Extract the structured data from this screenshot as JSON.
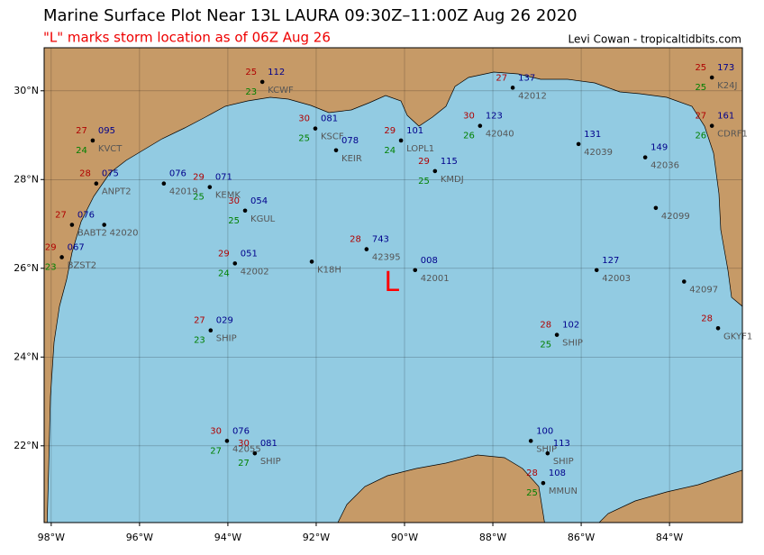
{
  "map": {
    "title": "Marine Surface Plot Near 13L LAURA 09:30Z–11:00Z Aug 26 2020",
    "subtitle": "\"L\" marks storm location as of 06Z Aug 26",
    "credit": "Levi Cowan - tropicaltidbits.com",
    "xlim": [
      -98.16,
      -82.35
    ],
    "ylim": [
      20.27,
      30.97
    ],
    "xticks": [
      {
        "value": -98,
        "label": "98°W"
      },
      {
        "value": -96,
        "label": "96°W"
      },
      {
        "value": -94,
        "label": "94°W"
      },
      {
        "value": -92,
        "label": "92°W"
      },
      {
        "value": -90,
        "label": "90°W"
      },
      {
        "value": -88,
        "label": "88°W"
      },
      {
        "value": -86,
        "label": "86°W"
      },
      {
        "value": -84,
        "label": "84°W"
      }
    ],
    "yticks": [
      {
        "value": 22,
        "label": "22°N"
      },
      {
        "value": 24,
        "label": "24°N"
      },
      {
        "value": 26,
        "label": "26°N"
      },
      {
        "value": 28,
        "label": "28°N"
      },
      {
        "value": 30,
        "label": "30°N"
      }
    ],
    "grid": true,
    "storm": {
      "label": "L",
      "lon": -90.29,
      "lat": 25.66
    },
    "stations": [
      {
        "id": "42019",
        "lon": -95.45,
        "lat": 27.91,
        "pressure": "076"
      },
      {
        "id": "KEMK",
        "lon": -94.41,
        "lat": 27.83,
        "temp": 29,
        "dewpoint": 25,
        "pressure": "071"
      },
      {
        "id": "KGUL",
        "lon": -93.61,
        "lat": 27.3,
        "temp": 30,
        "dewpoint": 25,
        "pressure": "054"
      },
      {
        "id": "42002",
        "lon": -93.84,
        "lat": 26.11,
        "temp": 29,
        "dewpoint": 24,
        "pressure": "051"
      },
      {
        "id": "SHIP",
        "lon": -94.39,
        "lat": 24.6,
        "temp": 27,
        "dewpoint": 23,
        "pressure": "029"
      },
      {
        "id": "42395",
        "lon": -90.86,
        "lat": 26.43,
        "temp": 28,
        "pressure": "743"
      },
      {
        "id": "42001",
        "lon": -89.76,
        "lat": 25.96,
        "pressure": "008"
      },
      {
        "id": "K18H",
        "lon": -92.1,
        "lat": 26.15
      },
      {
        "id": "KMDJ",
        "lon": -89.31,
        "lat": 28.19,
        "temp": 29,
        "dewpoint": 25,
        "pressure": "115"
      },
      {
        "id": "42040",
        "lon": -88.29,
        "lat": 29.21,
        "temp": 30,
        "dewpoint": 26,
        "pressure": "123"
      },
      {
        "id": "42039",
        "lon": -86.06,
        "lat": 28.8,
        "pressure": "131"
      },
      {
        "id": "42036",
        "lon": -84.55,
        "lat": 28.5,
        "pressure": "149"
      },
      {
        "id": "42099",
        "lon": -84.31,
        "lat": 27.36
      },
      {
        "id": "42003",
        "lon": -85.65,
        "lat": 25.96,
        "pressure": "127"
      },
      {
        "id": "42097",
        "lon": -83.67,
        "lat": 25.7
      },
      {
        "id": "GKYF1",
        "lon": -82.9,
        "lat": 24.65,
        "temp": 28
      },
      {
        "id": "SHIP",
        "lon": -86.55,
        "lat": 24.5,
        "temp": 28,
        "dewpoint": 25,
        "pressure": "102"
      },
      {
        "id": "SHIP",
        "lon": -87.14,
        "lat": 22.11,
        "pressure": "100"
      },
      {
        "id": "SHIP",
        "lon": -86.76,
        "lat": 21.83,
        "pressure": "113"
      },
      {
        "id": "MMUN",
        "lon": -86.86,
        "lat": 21.16,
        "temp": 28,
        "dewpoint": 25,
        "pressure": "108"
      },
      {
        "id": "42055",
        "lon": -94.02,
        "lat": 22.11,
        "temp": 30,
        "dewpoint": 27,
        "pressure": "076"
      },
      {
        "id": "SHIP",
        "lon": -93.39,
        "lat": 21.83,
        "temp": 30,
        "dewpoint": 27,
        "pressure": "081"
      },
      {
        "id": "KEIR",
        "lon": -91.55,
        "lat": 28.66,
        "pressure": "078"
      },
      {
        "id": "KSCF",
        "lon": -92.02,
        "lat": 29.15,
        "temp": 30,
        "dewpoint": 25,
        "pressure": "081"
      },
      {
        "id": "LOPL1",
        "lon": -90.08,
        "lat": 28.88,
        "temp": 29,
        "dewpoint": 24,
        "pressure": "101"
      },
      {
        "id": "ANPT2",
        "lon": -96.98,
        "lat": 27.91,
        "temp": 28,
        "pressure": "075"
      },
      {
        "id": "BABT2",
        "lon": -97.53,
        "lat": 26.98,
        "temp": 27,
        "pressure": "076"
      },
      {
        "id": "42020",
        "lon": -96.8,
        "lat": 26.98
      },
      {
        "id": "BZST2",
        "lon": -97.76,
        "lat": 26.25,
        "temp": 29,
        "dewpoint": 23,
        "pressure": "067"
      },
      {
        "id": "KVCT",
        "lon": -97.06,
        "lat": 28.88,
        "temp": 27,
        "dewpoint": 24,
        "pressure": "095"
      },
      {
        "id": "KCWF",
        "lon": -93.22,
        "lat": 30.2,
        "temp": 25,
        "dewpoint": 23,
        "pressure": "112"
      },
      {
        "id": "K24J",
        "lon": -83.04,
        "lat": 30.3,
        "temp": 25,
        "dewpoint": 25,
        "pressure": "173"
      },
      {
        "id": "CDRF1",
        "lon": -83.04,
        "lat": 29.21,
        "temp": 27,
        "dewpoint": 26,
        "pressure": "161"
      },
      {
        "id": "42012",
        "lon": -87.55,
        "lat": 30.07,
        "temp": 27,
        "pressure": "137"
      }
    ]
  }
}
